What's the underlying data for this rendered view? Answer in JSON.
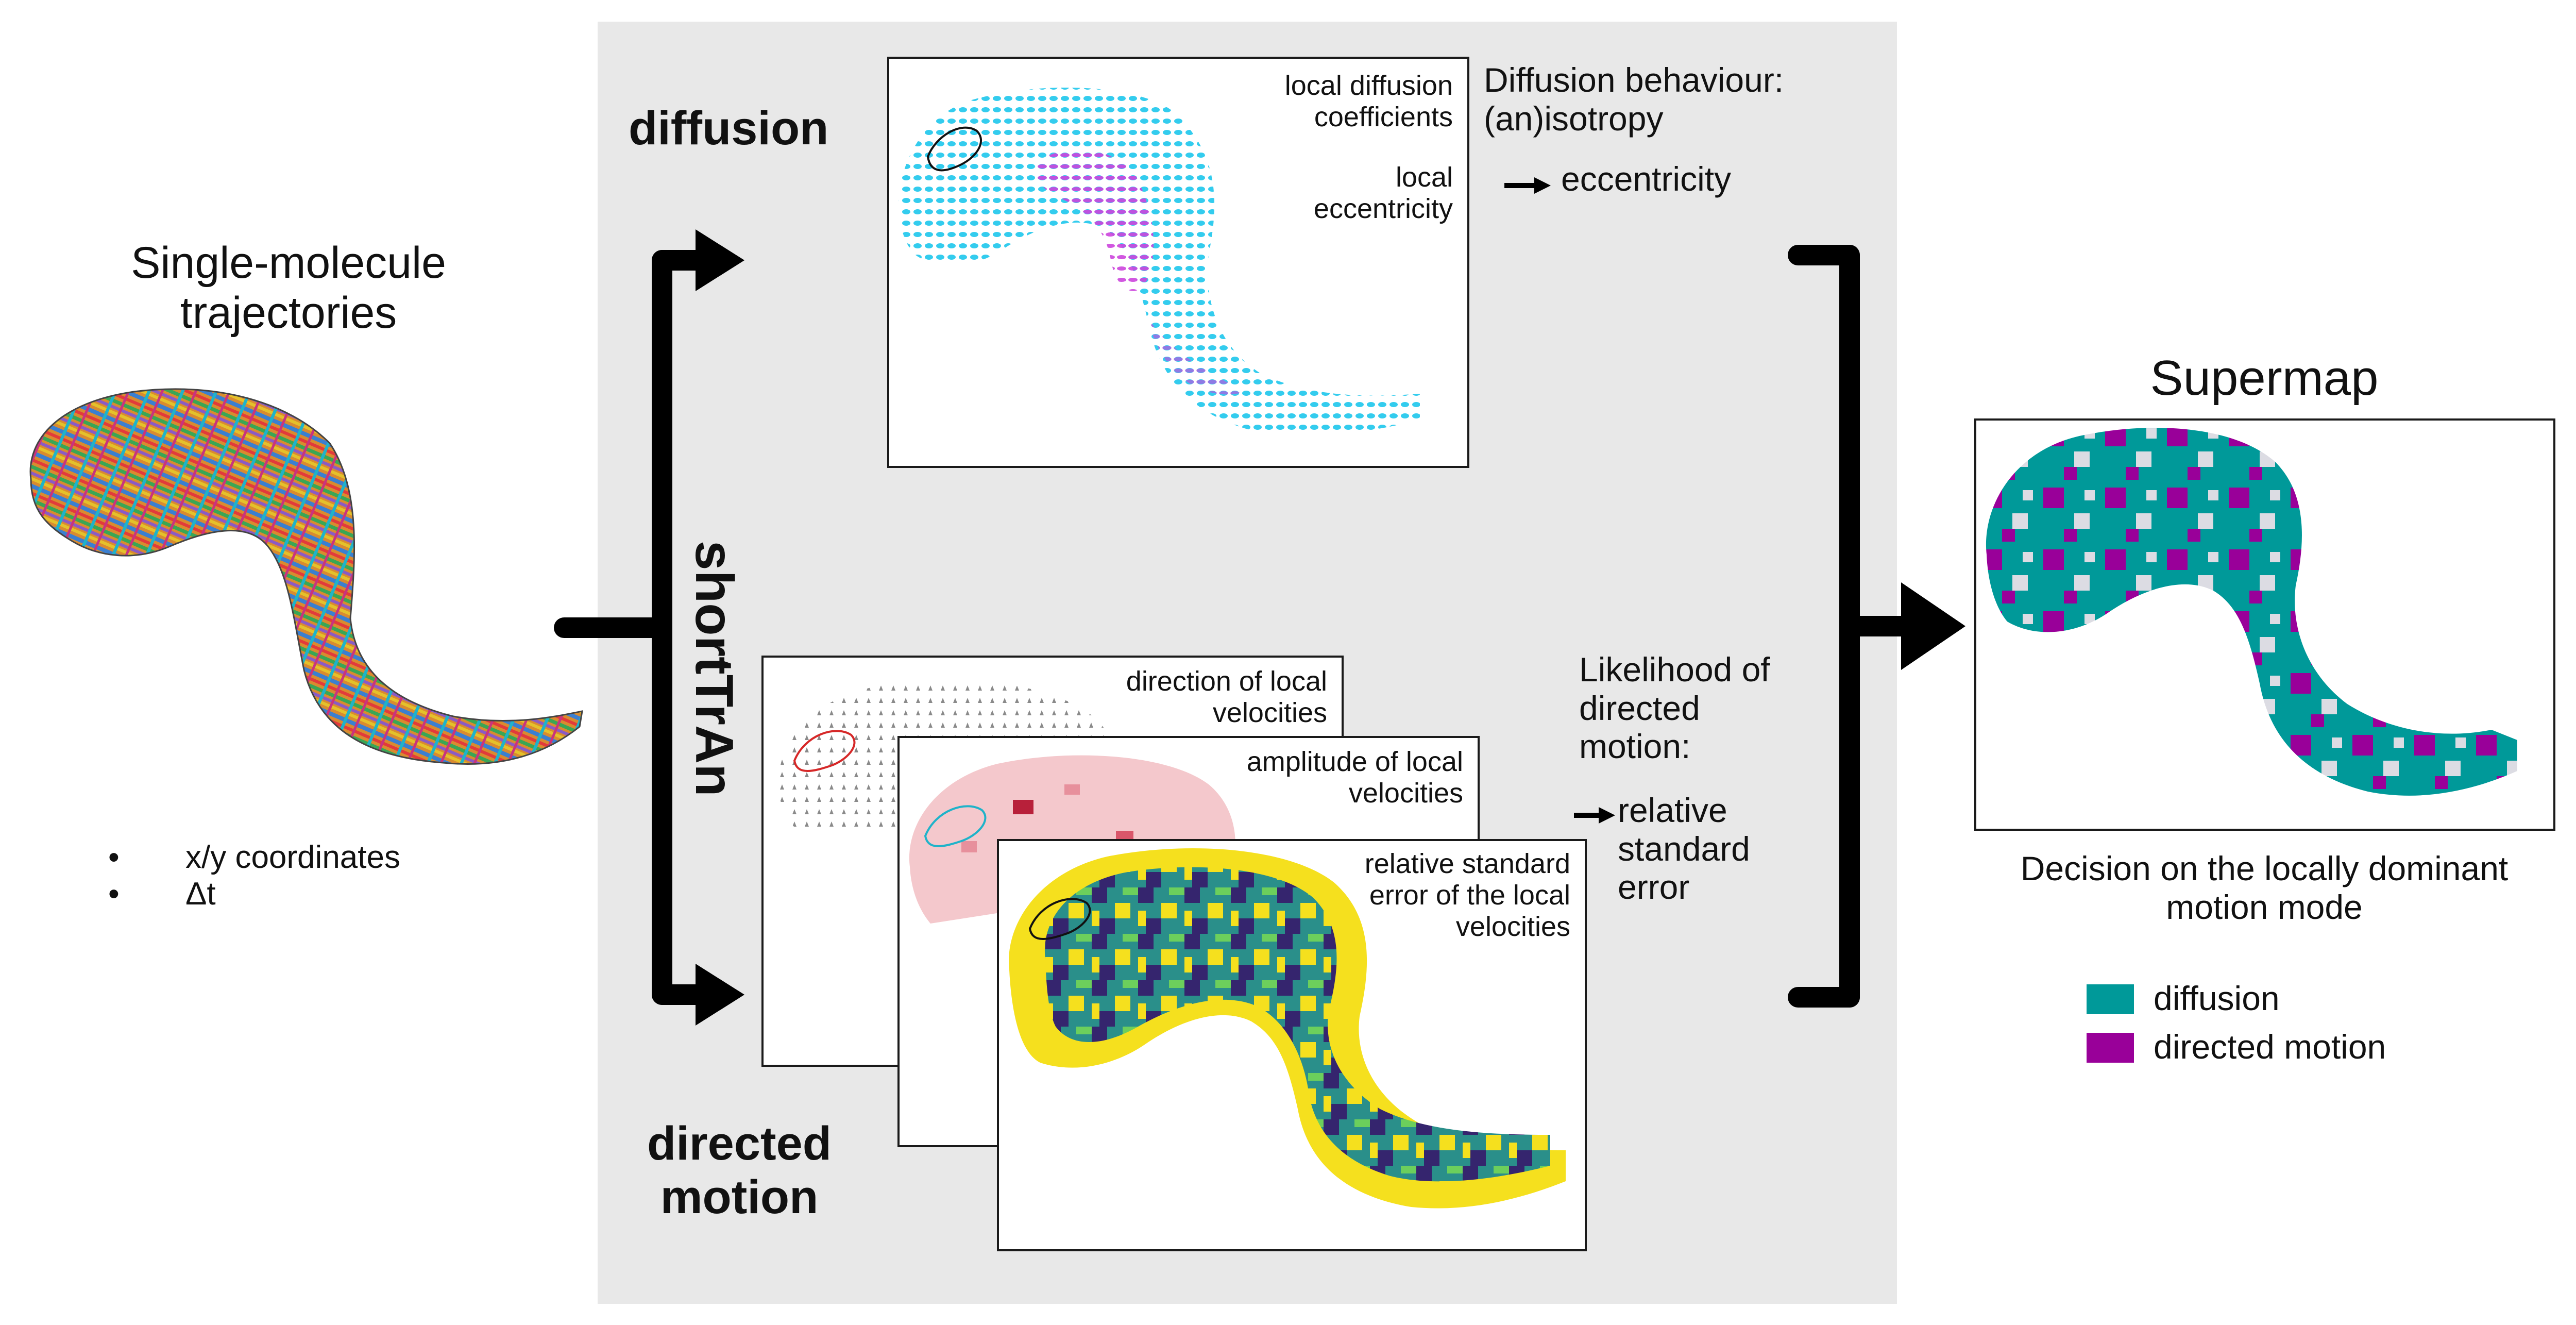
{
  "left": {
    "title_line1": "Single-molecule",
    "title_line2": "trajectories",
    "bullets": [
      "x/y coordinates",
      "Δt"
    ]
  },
  "center": {
    "diffusion_label": "diffusion",
    "method_label": "shortTrAn",
    "directed_label_line1": "directed",
    "directed_label_line2": "motion",
    "diffusion_map": {
      "label1_line1": "local diffusion",
      "label1_line2": "coefficients",
      "label2_line1": "local",
      "label2_line2": "eccentricity"
    },
    "diffusion_behaviour": {
      "line1": "Diffusion behaviour:",
      "line2": "(an)isotropy",
      "line3": "eccentricity"
    },
    "velocity_maps": [
      {
        "line1": "direction of local",
        "line2": "velocities"
      },
      {
        "line1": "amplitude of local",
        "line2": "velocities"
      },
      {
        "line1": "relative standard",
        "line2": "error of the local",
        "line3": "velocities"
      }
    ],
    "likelihood": {
      "line1": "Likelihood of",
      "line2": "directed",
      "line3": "motion:",
      "line4": "relative",
      "line5": "standard",
      "line6": "error"
    }
  },
  "right": {
    "title": "Supermap",
    "caption_line1": "Decision on the locally dominant",
    "caption_line2": "motion mode",
    "legend": [
      {
        "label": "diffusion",
        "color": "#009999"
      },
      {
        "label": "directed motion",
        "color": "#990099"
      }
    ]
  },
  "colors": {
    "panel": "#e8e8e8",
    "diffusion_cyan": "#33ccee",
    "diffusion_magenta": "#cc33cc",
    "amplitude_pink": "#f4c8cc",
    "viridis_yellow": "#f5e01e",
    "viridis_teal": "#2a8f8a",
    "viridis_navy": "#35256e"
  }
}
